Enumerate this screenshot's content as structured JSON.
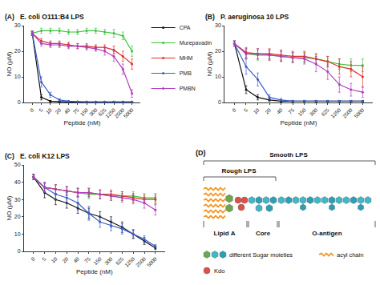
{
  "chart_data": [
    {
      "type": "line",
      "panel": "(A)",
      "title": "E. coli O111:B4 LPS",
      "x_label": "Peptide (nM)",
      "y_label": "NO (µM)",
      "categories": [
        "0",
        "5",
        "10",
        "20",
        "40",
        "75",
        "150",
        "300",
        "625",
        "1250",
        "2500",
        "5000"
      ],
      "ylim": [
        0,
        30
      ],
      "yticks": [
        0,
        10,
        20,
        30
      ],
      "grid": false,
      "marker": "circle",
      "legend": "top right",
      "series": [
        {
          "name": "CPA",
          "color": "#111111",
          "values": [
            27,
            2,
            0.5,
            0.3,
            0.2,
            0.2,
            0.2,
            0.2,
            0.2,
            0.2,
            0.2,
            0.2
          ],
          "errors": [
            0.8,
            1,
            0.3,
            0.2,
            0.1,
            0.1,
            0.1,
            0.1,
            0.1,
            0.1,
            0.1,
            0.1
          ]
        },
        {
          "name": "Murepavadin",
          "color": "#3cc43c",
          "values": [
            27,
            28,
            28,
            28,
            27.5,
            27.5,
            28,
            28,
            27.5,
            27,
            26,
            20
          ],
          "errors": [
            0.8,
            1,
            1,
            1,
            1,
            1,
            1,
            1,
            1,
            1.5,
            1.5,
            2
          ]
        },
        {
          "name": "MHM",
          "color": "#e0302c",
          "values": [
            27,
            24,
            23,
            23,
            22.5,
            22,
            22,
            21.5,
            21.5,
            20.5,
            18,
            15
          ],
          "errors": [
            0.8,
            1,
            1,
            1,
            1,
            1,
            1,
            1,
            1,
            1.5,
            2,
            2
          ]
        },
        {
          "name": "PMB",
          "color": "#3a5fcd",
          "values": [
            27,
            8,
            3,
            1,
            0.5,
            0.3,
            0.2,
            0.2,
            0.2,
            0.2,
            0.2,
            0.2
          ],
          "errors": [
            0.8,
            2,
            1,
            0.5,
            0.3,
            0.2,
            0.1,
            0.1,
            0.1,
            0.1,
            0.1,
            0.1
          ]
        },
        {
          "name": "PMBN",
          "color": "#b03cc0",
          "values": [
            27,
            23,
            22.5,
            22.5,
            22,
            22,
            21.5,
            21,
            20,
            18,
            13,
            3.5
          ],
          "errors": [
            0.8,
            1,
            1,
            1,
            1,
            1,
            1,
            1,
            1.5,
            2,
            2,
            1.5
          ]
        }
      ]
    },
    {
      "type": "line",
      "panel": "(B)",
      "title": "P. aeruginosa 10 LPS",
      "x_label": "Peptide (nM)",
      "y_label": "NO (µM)",
      "categories": [
        "0",
        "5",
        "10",
        "20",
        "40",
        "75",
        "150",
        "300",
        "625",
        "1250",
        "2500",
        "5000"
      ],
      "ylim": [
        0,
        30
      ],
      "yticks": [
        0,
        10,
        20,
        30
      ],
      "grid": false,
      "marker": "circle",
      "series": [
        {
          "name": "CPA",
          "color": "#111111",
          "values": [
            23,
            5,
            2,
            1,
            0.5,
            0.5,
            0.5,
            0.5,
            0.5,
            0.5,
            0.5,
            0.5
          ],
          "errors": [
            1,
            1.5,
            1,
            0.5,
            0.3,
            0.3,
            0.3,
            0.3,
            0.3,
            0.3,
            0.3,
            0.3
          ]
        },
        {
          "name": "Murepavadin",
          "color": "#3cc43c",
          "values": [
            23,
            19,
            18.5,
            18.5,
            18,
            17.5,
            17.5,
            17,
            16,
            15,
            14.5,
            14.5
          ],
          "errors": [
            1,
            2,
            2,
            2,
            2,
            2,
            2,
            2,
            2,
            2,
            2.5,
            2.5
          ]
        },
        {
          "name": "MHM",
          "color": "#e0302c",
          "values": [
            23,
            19.5,
            19,
            19,
            18.5,
            18,
            18,
            17,
            16,
            14,
            13,
            10
          ],
          "errors": [
            1,
            2,
            2,
            2,
            2,
            2,
            2,
            2,
            2,
            3,
            3,
            4
          ]
        },
        {
          "name": "PMB",
          "color": "#3a5fcd",
          "values": [
            23,
            14,
            9,
            2,
            1,
            0.5,
            0.5,
            0.5,
            0.5,
            0.5,
            0.5,
            0.5
          ],
          "errors": [
            1,
            3,
            2.5,
            1,
            0.5,
            0.3,
            0.3,
            0.3,
            0.3,
            0.3,
            0.3,
            0.3
          ]
        },
        {
          "name": "PMBN",
          "color": "#b03cc0",
          "values": [
            23,
            19,
            19,
            18.5,
            18,
            17.5,
            17,
            15,
            12,
            7,
            5,
            4
          ],
          "errors": [
            1,
            2,
            2,
            2,
            2,
            2,
            2,
            3,
            3,
            3,
            2.5,
            2
          ]
        }
      ]
    },
    {
      "type": "line",
      "panel": "(C)",
      "title": "E. coli K12 LPS",
      "x_label": "Peptide (nM)",
      "y_label": "NO (µM)",
      "categories": [
        "0",
        "5",
        "10",
        "20",
        "40",
        "75",
        "150",
        "300",
        "625",
        "1250",
        "2500",
        "5000"
      ],
      "ylim": [
        0,
        50
      ],
      "yticks": [
        0,
        10,
        20,
        30,
        40,
        50
      ],
      "grid": false,
      "marker": "circle",
      "series": [
        {
          "name": "CPA",
          "color": "#111111",
          "values": [
            43,
            34,
            30,
            28,
            25,
            22,
            20,
            17,
            14,
            10,
            6,
            2
          ],
          "errors": [
            1.5,
            3,
            3,
            3,
            3,
            3,
            3,
            3,
            3,
            2.5,
            2,
            1
          ]
        },
        {
          "name": "Murepavadin",
          "color": "#3cc43c",
          "values": [
            43,
            37,
            36,
            35,
            34,
            33,
            33,
            32,
            32,
            32,
            31,
            31
          ],
          "errors": [
            1.5,
            2.5,
            2.5,
            2.5,
            2.5,
            2.5,
            2.5,
            2.5,
            2.5,
            2.5,
            2.5,
            2.5
          ]
        },
        {
          "name": "MHM",
          "color": "#e0302c",
          "values": [
            43,
            37,
            36,
            35,
            34,
            34,
            33,
            33,
            32,
            31,
            30,
            30
          ],
          "errors": [
            1.5,
            2.5,
            2.5,
            2.5,
            2.5,
            2.5,
            2.5,
            2.5,
            2.5,
            2.5,
            2.5,
            2.5
          ]
        },
        {
          "name": "PMB",
          "color": "#3a5fcd",
          "values": [
            43,
            37,
            33,
            31,
            28,
            22,
            17,
            15,
            13,
            10,
            7,
            3
          ],
          "errors": [
            1.5,
            3,
            3,
            3,
            4,
            4,
            3,
            3,
            3,
            2.5,
            2,
            1
          ]
        },
        {
          "name": "PMBN",
          "color": "#b03cc0",
          "values": [
            43,
            37,
            36,
            35,
            34,
            34,
            33,
            32,
            31,
            30,
            28,
            24
          ],
          "errors": [
            1.5,
            2.5,
            2.5,
            2.5,
            2.5,
            2.5,
            2.5,
            2.5,
            2.5,
            2.5,
            3,
            3
          ]
        }
      ]
    }
  ],
  "diagram": {
    "panel": "(D)",
    "smooth": "Smooth LPS",
    "rough": "Rough LPS",
    "regions": [
      "Lipid A",
      "Core",
      "O-antigen"
    ],
    "legend": {
      "sugar": "different Sugar moieties",
      "acyl": "acyl chain",
      "kdo": "Kdo"
    }
  }
}
